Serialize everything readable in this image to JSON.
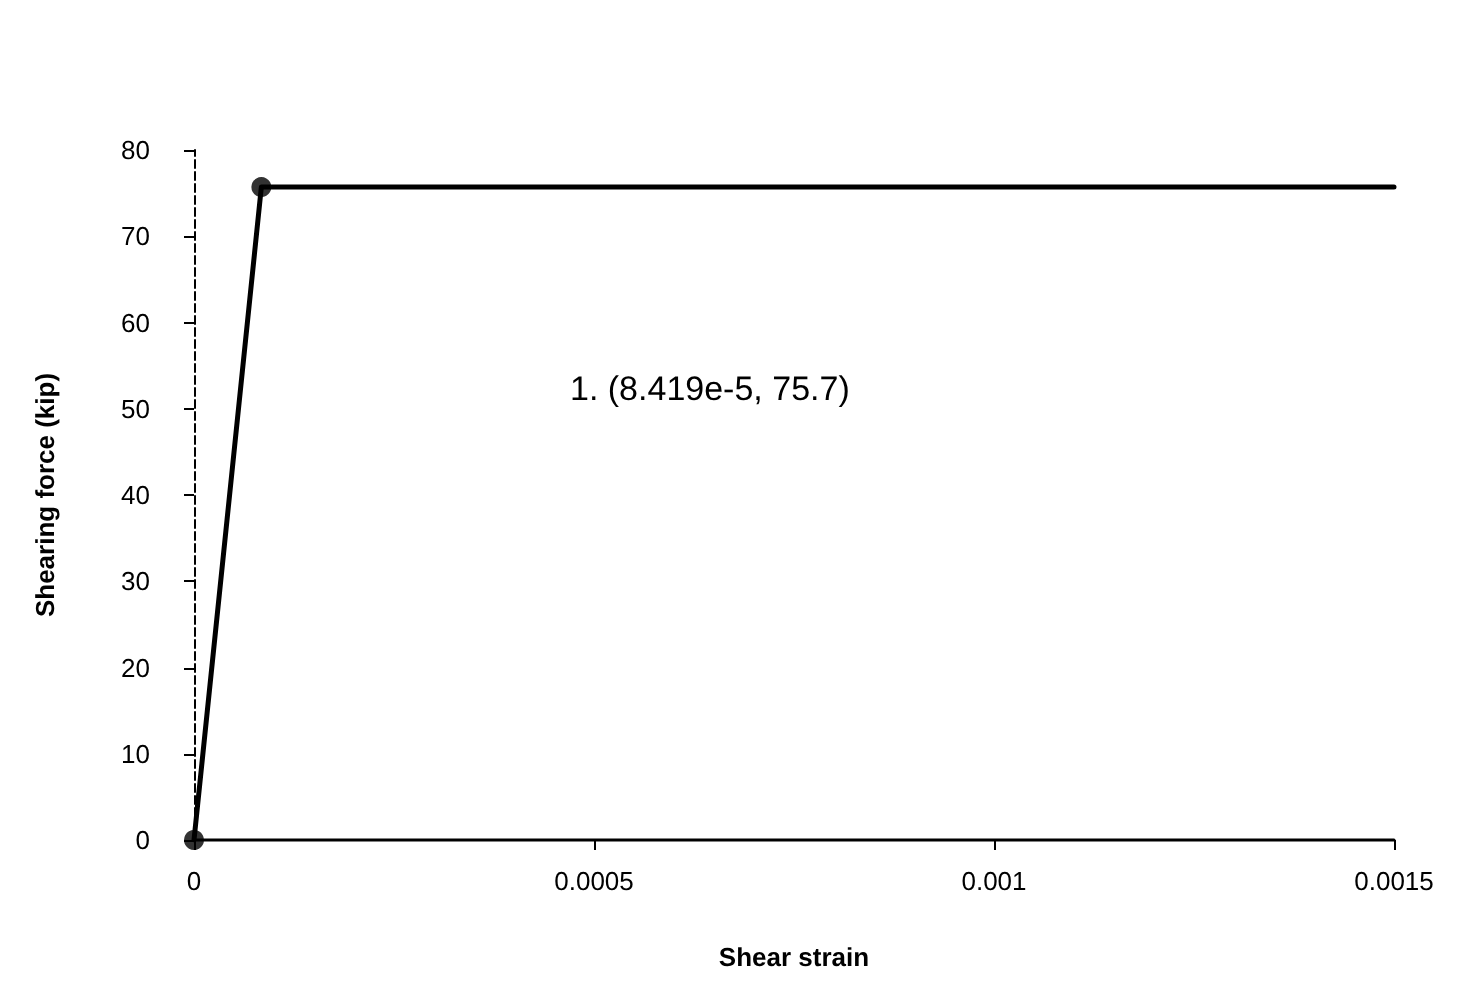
{
  "chart_data": {
    "type": "line",
    "xlabel": "Shear strain",
    "ylabel": "Shearing force (kip)",
    "xlim": [
      0,
      0.0015
    ],
    "xticks": [
      0,
      0.0005,
      0.001,
      0.0015
    ],
    "ylim": [
      0,
      80
    ],
    "yticks": [
      0,
      10,
      20,
      30,
      40,
      50,
      60,
      70,
      80
    ],
    "grid": false,
    "line_style": "solid",
    "annotations": [
      "1. (8.419e-5, 75.7)"
    ],
    "series": [
      {
        "color": "#000000",
        "marker": "none",
        "x": [
          0,
          8.419e-05,
          0.0015
        ],
        "values": [
          0,
          75.7,
          75.7
        ]
      },
      {
        "type": "scatter",
        "color": "#000000",
        "marker": "circle",
        "x": [
          0,
          8.419e-05
        ],
        "values": [
          0,
          75.7
        ]
      }
    ]
  }
}
